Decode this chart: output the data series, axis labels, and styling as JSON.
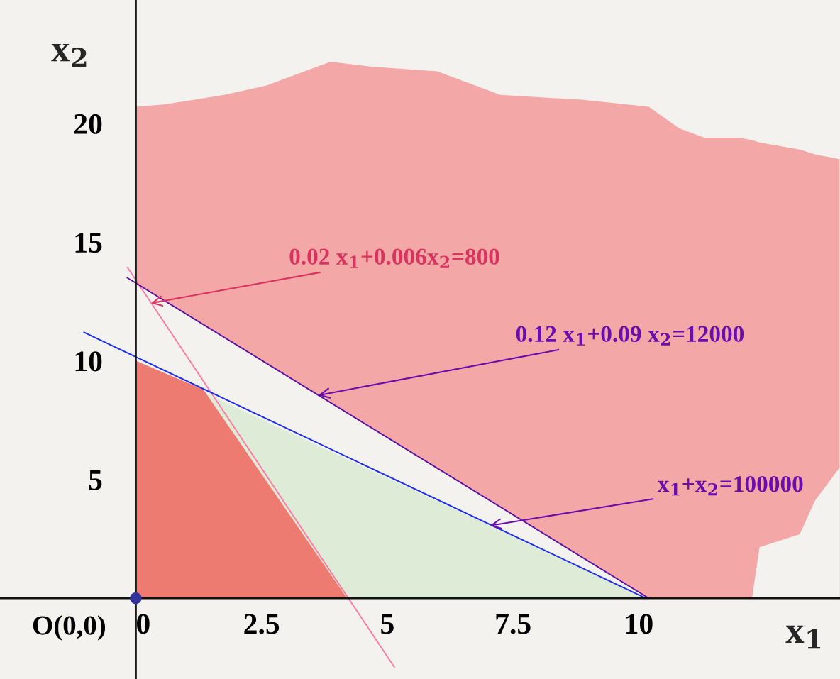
{
  "chart_data": {
    "type": "line",
    "xlabel": "x$_{1}$",
    "ylabel": "x$_{2}$",
    "xlim": [
      -2.7,
      14.0
    ],
    "ylim": [
      -3.4,
      25.2
    ],
    "xticks": [
      0,
      2.5,
      5,
      7.5,
      10
    ],
    "yticks": [
      5,
      10,
      15,
      20
    ],
    "grid": false,
    "legend": false,
    "series": [
      {
        "type": "area",
        "color": "#f4a7a7",
        "x": [
          0,
          0.56,
          1.76,
          2.6,
          3.87,
          4.65,
          5.99,
          7.25,
          8.87,
          10.2,
          10.8,
          11.3,
          12.0,
          12.25,
          12.4,
          13.2,
          13.5,
          13.99
        ],
        "values": [
          20.7,
          20.8,
          21.2,
          21.6,
          22.6,
          22.4,
          22.2,
          21.2,
          21.0,
          20.7,
          19.8,
          19.4,
          19.4,
          19.3,
          19.2,
          18.9,
          18.7,
          18.5
        ]
      },
      {
        "type": "area",
        "color": "#f3f2ef",
        "x": [
          0,
          10.2
        ],
        "values": [
          13.28,
          0
        ]
      },
      {
        "type": "area",
        "color": "#f3f2ef",
        "x": [
          12.25,
          12.4,
          13.2,
          13.5,
          13.99
        ],
        "values": [
          0,
          2.15,
          2.7,
          4.1,
          5.5
        ]
      },
      {
        "type": "area",
        "color": "#deebd6",
        "x": [
          0,
          10.14
        ],
        "values": [
          10,
          0
        ]
      },
      {
        "type": "area",
        "color": "#ee7b72",
        "x": [
          0,
          1.34,
          4.2
        ],
        "values": [
          10,
          8.8,
          0
        ]
      },
      {
        "color": "#ff7aa8",
        "x": [
          -0.17,
          5.14
        ],
        "values": [
          13.95,
          -2.9
        ]
      },
      {
        "color": "#5a0fa0",
        "x": [
          -0.17,
          10.2
        ],
        "values": [
          13.5,
          0
        ]
      },
      {
        "color": "#1a2cf0",
        "x": [
          -1.03,
          10.14
        ],
        "values": [
          11.2,
          0
        ]
      },
      {
        "type": "scatter",
        "color": "#333399",
        "x": [
          0
        ],
        "values": [
          0
        ]
      }
    ],
    "annotations": [
      {
        "text": "0.02 x$_{1}$+0.006x$_{2}$=800",
        "x": 0.3,
        "y": 12.43
      },
      {
        "text": "0.12 x$_{1}$+0.09 x$_{2}$=12000",
        "x": 3.63,
        "y": 8.55
      },
      {
        "text": "x$_{1}$+x$_{2}$=100000",
        "x": 7.04,
        "y": 3.06
      },
      {
        "text": "O(0,0)",
        "x": 0,
        "y": 0
      }
    ]
  }
}
